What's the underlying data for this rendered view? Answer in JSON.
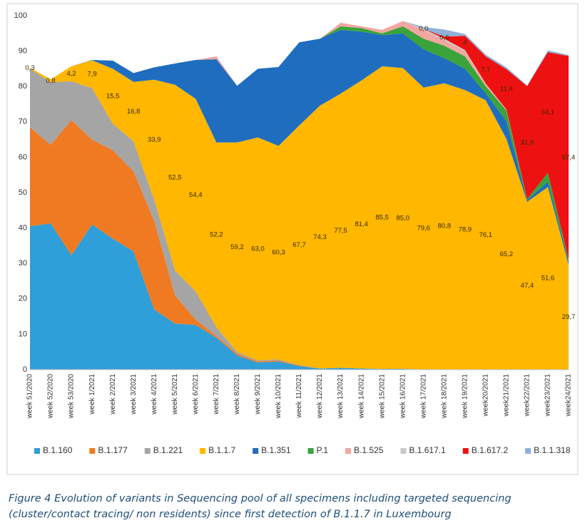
{
  "chart_data": {
    "type": "stacked_area",
    "categories": [
      "week 51/2020",
      "week 52/2020",
      "week 53/2020",
      "week 1/2021",
      "week 2/2021",
      "week 3/2021",
      "week 4/2021",
      "week 5/2021",
      "week 6/2021",
      "week 7/2021",
      "week 8/2021",
      "week 9/2021",
      "week 10/2021",
      "week 11/2021",
      "week 12/2021",
      "week 13/2021",
      "week 14/2021",
      "week 15/2021",
      "week 16/2021",
      "week 17/2021",
      "week 18/2021",
      "week 19/2021",
      "week20/2021",
      "week21/2021",
      "week22/2021",
      "week23/2021",
      "week24/2021"
    ],
    "series": [
      {
        "name": "B.1.160",
        "color": "#2e9fd8",
        "values": [
          40.5,
          41.3,
          32.3,
          41,
          37,
          33.4,
          17,
          13,
          12.6,
          9,
          4,
          2,
          2.3,
          1,
          0.3,
          0.5,
          0.3,
          0.2,
          0.2,
          0.1,
          0.1,
          0.1,
          0,
          0,
          0,
          0,
          0
        ]
      },
      {
        "name": "B.1.177",
        "color": "#f07a22",
        "values": [
          28,
          22.2,
          38.2,
          24,
          25,
          22.6,
          25,
          8,
          1.5,
          0.5,
          0.5,
          0.3,
          0.3,
          0.2,
          0,
          0,
          0,
          0,
          0,
          0,
          0,
          0,
          0,
          0,
          0,
          0,
          0
        ]
      },
      {
        "name": "B.1.221",
        "color": "#a5a5a5",
        "values": [
          16.5,
          17.7,
          11,
          14.5,
          7.5,
          8.5,
          6,
          7,
          8,
          2.5,
          0.5,
          0.3,
          0.3,
          0.1,
          0,
          0,
          0,
          0,
          0,
          0,
          0,
          0,
          0,
          0,
          0,
          0,
          0
        ]
      },
      {
        "name": "B.1.1.7",
        "color": "#ffb700",
        "values": [
          0.3,
          0.8,
          4.2,
          7.9,
          15.5,
          16.8,
          33.9,
          52.5,
          54.4,
          52.2,
          59.2,
          63.0,
          60.3,
          67.7,
          74.3,
          77.5,
          81.4,
          85.5,
          85.0,
          79.6,
          80.8,
          78.9,
          76.1,
          65.2,
          47.4,
          51.6,
          29.7
        ],
        "value_labels": [
          "0,3",
          "0,8",
          "4,2",
          "7,9",
          "15,5",
          "16,8",
          "33,9",
          "52,5",
          "54,4",
          "52,2",
          "59,2",
          "63,0",
          "60,3",
          "67,7",
          "74,3",
          "77,5",
          "81,4",
          "85,5",
          "85,0",
          "79,6",
          "80,8",
          "78,9",
          "76,1",
          "65,2",
          "47,4",
          "51,6",
          "29,7"
        ]
      },
      {
        "name": "B.1.351",
        "color": "#1f6dbf",
        "values": [
          0,
          0,
          0,
          0.1,
          2.3,
          2.5,
          3.5,
          6,
          11,
          23.5,
          16,
          19.4,
          22.3,
          23.5,
          18.9,
          18,
          13.8,
          8.8,
          9.8,
          10.8,
          7.1,
          6,
          2,
          5,
          0.5,
          1.5,
          1
        ]
      },
      {
        "name": "P.1",
        "color": "#3aa33a",
        "values": [
          0,
          0,
          0,
          0,
          0,
          0,
          0,
          0,
          0,
          0,
          0,
          0,
          0,
          0,
          0,
          1,
          1,
          0.5,
          2,
          3,
          3.5,
          3.5,
          2,
          3,
          0.3,
          2.5,
          0.5
        ]
      },
      {
        "name": "B.1.525",
        "color": "#f2a7a0",
        "values": [
          0,
          0,
          0,
          0,
          0,
          0,
          0,
          0,
          0,
          0.8,
          0,
          0,
          0,
          0,
          0,
          1,
          0.5,
          1,
          1.5,
          2.5,
          1.5,
          1.5,
          0.5,
          0.3,
          0,
          0,
          0
        ]
      },
      {
        "name": "B.1.617.1",
        "color": "#c8c8c8",
        "values": [
          0,
          0,
          0,
          0,
          0,
          0,
          0,
          0,
          0,
          0,
          0,
          0,
          0,
          0,
          0,
          0,
          0,
          0,
          0,
          0.3,
          0.5,
          0.3,
          0.2,
          0,
          0,
          0,
          0
        ]
      },
      {
        "name": "B.1.617.2",
        "color": "#ee1111",
        "values": [
          0,
          0,
          0,
          0,
          0,
          0,
          0,
          0,
          0,
          0,
          0,
          0,
          0,
          0,
          0,
          0,
          0,
          0,
          0,
          0.0,
          0.6,
          4,
          7.7,
          11.4,
          31.9,
          34.1,
          57.4
        ],
        "value_labels": [
          null,
          null,
          null,
          null,
          null,
          null,
          null,
          null,
          null,
          null,
          null,
          null,
          null,
          null,
          null,
          null,
          null,
          null,
          null,
          "0,0",
          "0,6",
          "4",
          "7,7",
          "11,4",
          "31,9",
          "34,1",
          "57,4"
        ]
      },
      {
        "name": "B.1.1.318",
        "color": "#8fb1d9",
        "values": [
          0,
          0,
          0,
          0,
          0,
          0,
          0,
          0,
          0,
          0,
          0,
          0,
          0,
          0,
          0,
          0,
          0,
          0,
          0,
          0.5,
          2,
          0.5,
          0.5,
          0.5,
          0.2,
          0.5,
          0.3
        ]
      }
    ],
    "ylim": [
      0,
      100
    ],
    "yticks": [
      0,
      10,
      20,
      30,
      40,
      50,
      60,
      70,
      80,
      90,
      100
    ],
    "grid": false,
    "legend": "bottom",
    "caption": [
      "Figure 4  Evolution of variants in Sequencing pool of all specimens including targeted sequencing",
      "(cluster/contact tracing/ non residents) since first detection of B.1.1.7 in Luxembourg"
    ]
  }
}
